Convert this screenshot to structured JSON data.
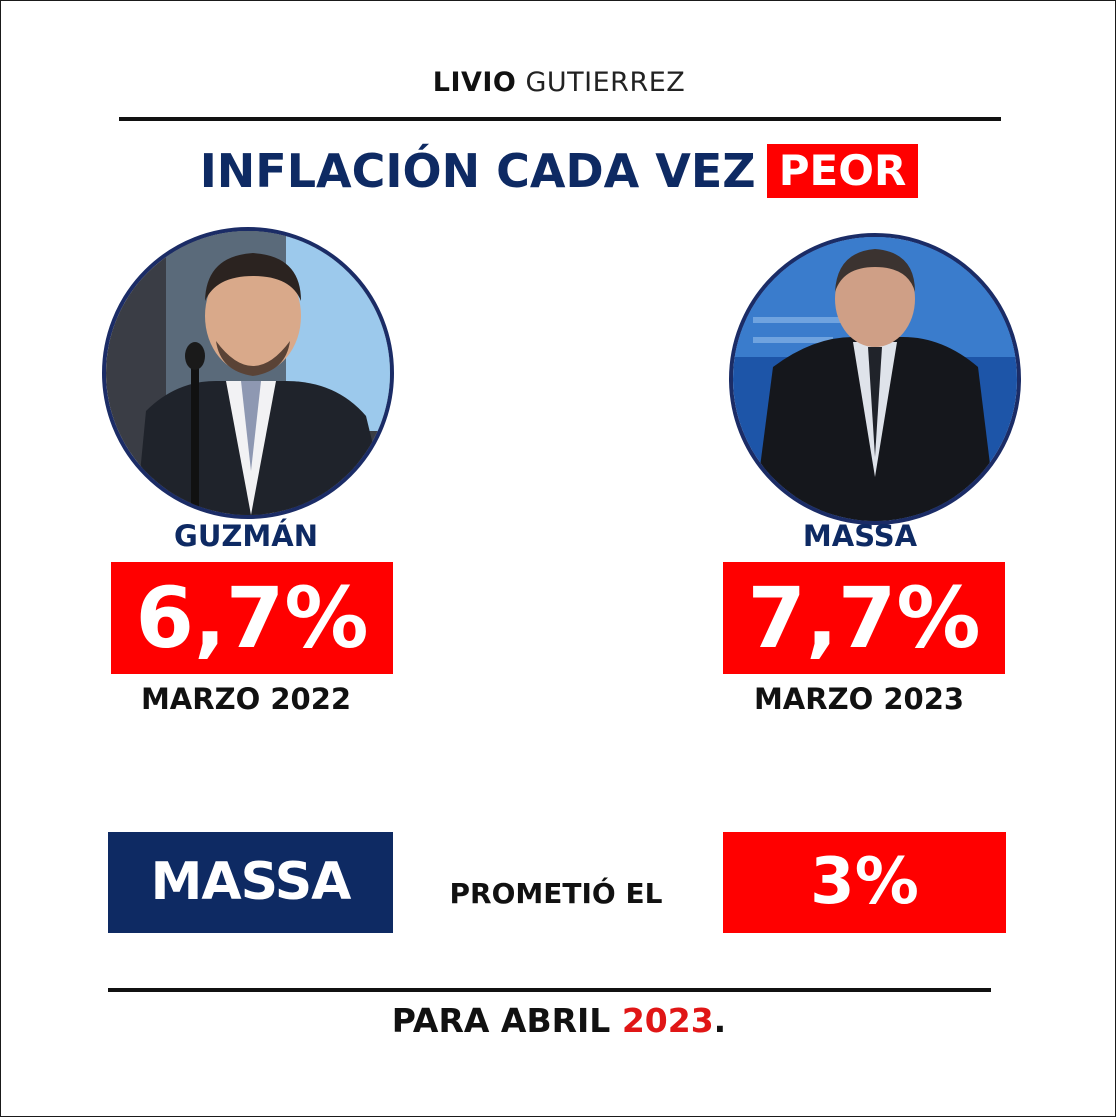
{
  "brand": {
    "first": "LIVIO",
    "second": "GUTIERREZ"
  },
  "headline": {
    "main": "INFLACIÓN CADA VEZ",
    "highlight": "PEOR"
  },
  "left": {
    "name": "GUZMÁN",
    "value": "6,7%",
    "date": "MARZO 2022"
  },
  "right": {
    "name": "MASSA",
    "value": "7,7%",
    "date": "MARZO 2023"
  },
  "promise": {
    "who": "MASSA",
    "text": "PROMETIÓ EL",
    "value": "3%"
  },
  "footer": {
    "text": "PARA ABRIL",
    "year": "2023",
    "end": "."
  },
  "colors": {
    "navy": "#0e2a63",
    "red": "#ff0000"
  }
}
